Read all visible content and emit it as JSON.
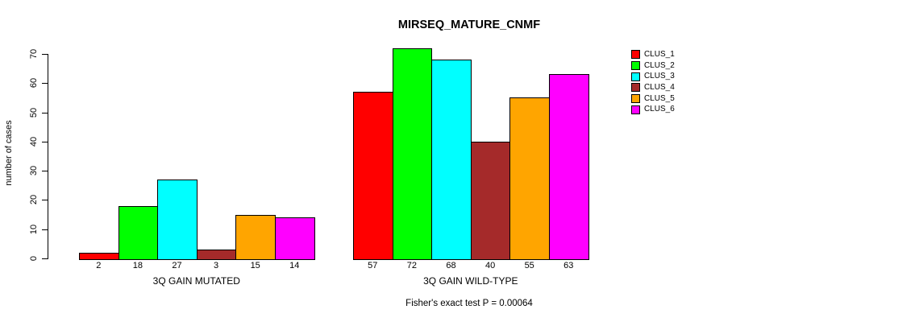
{
  "chart_data": {
    "type": "bar",
    "title": "MIRSEQ_MATURE_CNMF",
    "ylabel": "number of cases",
    "ylim": [
      0,
      70
    ],
    "yticks": [
      0,
      10,
      20,
      30,
      40,
      50,
      60,
      70
    ],
    "grid": false,
    "legend_position": "right-outside",
    "categories": [
      "3Q GAIN MUTATED",
      "3Q GAIN WILD-TYPE"
    ],
    "series": [
      {
        "name": "CLUS_1",
        "color": "#FF0000",
        "values": [
          2,
          57
        ]
      },
      {
        "name": "CLUS_2",
        "color": "#00FF00",
        "values": [
          18,
          72
        ]
      },
      {
        "name": "CLUS_3",
        "color": "#00FFFF",
        "values": [
          27,
          68
        ]
      },
      {
        "name": "CLUS_4",
        "color": "#A52A2A",
        "values": [
          3,
          40
        ]
      },
      {
        "name": "CLUS_5",
        "color": "#FFA500",
        "values": [
          15,
          55
        ]
      },
      {
        "name": "CLUS_6",
        "color": "#FF00FF",
        "values": [
          14,
          63
        ]
      }
    ],
    "bar_value_labels": [
      [
        "2",
        "18",
        "27",
        "3",
        "15",
        "14"
      ],
      [
        "57",
        "72",
        "68",
        "40",
        "55",
        "63"
      ]
    ],
    "annotation": "Fisher's exact test P = 0.00064"
  }
}
